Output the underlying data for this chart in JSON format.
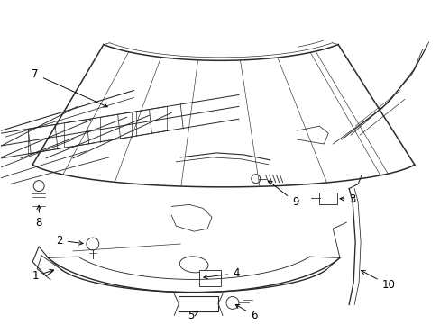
{
  "background_color": "#ffffff",
  "line_color": "#2a2a2a",
  "label_fontsize": 8.5,
  "figsize": [
    4.89,
    3.6
  ],
  "dpi": 100
}
